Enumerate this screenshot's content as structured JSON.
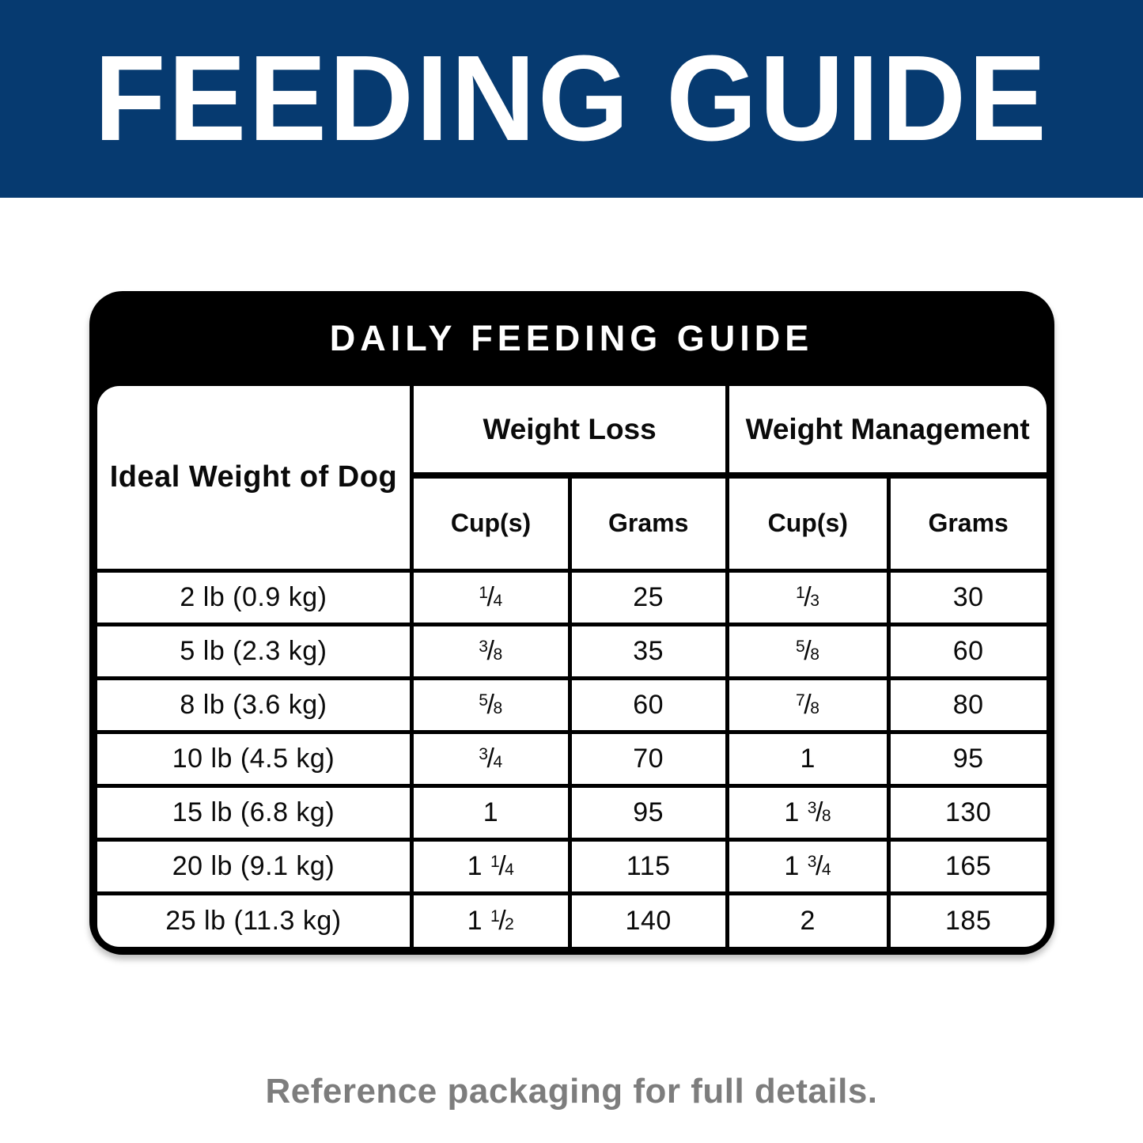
{
  "banner": {
    "title": "FEEDING GUIDE",
    "bg_color": "#063A70",
    "text_color": "#FFFFFF"
  },
  "table": {
    "title": "DAILY FEEDING GUIDE",
    "row_header": "Ideal Weight of Dog",
    "groups": [
      {
        "label": "Weight Loss",
        "subcolumns": [
          "Cup(s)",
          "Grams"
        ]
      },
      {
        "label": "Weight Management",
        "subcolumns": [
          "Cup(s)",
          "Grams"
        ]
      }
    ],
    "rows": [
      {
        "ideal_weight": "2 lb (0.9 kg)",
        "weight_loss_cups": "1/4",
        "weight_loss_grams": "25",
        "weight_mgmt_cups": "1/3",
        "weight_mgmt_grams": "30"
      },
      {
        "ideal_weight": "5 lb (2.3 kg)",
        "weight_loss_cups": "3/8",
        "weight_loss_grams": "35",
        "weight_mgmt_cups": "5/8",
        "weight_mgmt_grams": "60"
      },
      {
        "ideal_weight": "8 lb (3.6 kg)",
        "weight_loss_cups": "5/8",
        "weight_loss_grams": "60",
        "weight_mgmt_cups": "7/8",
        "weight_mgmt_grams": "80"
      },
      {
        "ideal_weight": "10 lb (4.5 kg)",
        "weight_loss_cups": "3/4",
        "weight_loss_grams": "70",
        "weight_mgmt_cups": "1",
        "weight_mgmt_grams": "95"
      },
      {
        "ideal_weight": "15 lb (6.8 kg)",
        "weight_loss_cups": "1",
        "weight_loss_grams": "95",
        "weight_mgmt_cups": "1 3/8",
        "weight_mgmt_grams": "130"
      },
      {
        "ideal_weight": "20 lb (9.1 kg)",
        "weight_loss_cups": "1 1/4",
        "weight_loss_grams": "115",
        "weight_mgmt_cups": "1 3/4",
        "weight_mgmt_grams": "165"
      },
      {
        "ideal_weight": "25 lb (11.3 kg)",
        "weight_loss_cups": "1 1/2",
        "weight_loss_grams": "140",
        "weight_mgmt_cups": "2",
        "weight_mgmt_grams": "185"
      }
    ]
  },
  "footer": {
    "note": "Reference packaging for full details."
  }
}
